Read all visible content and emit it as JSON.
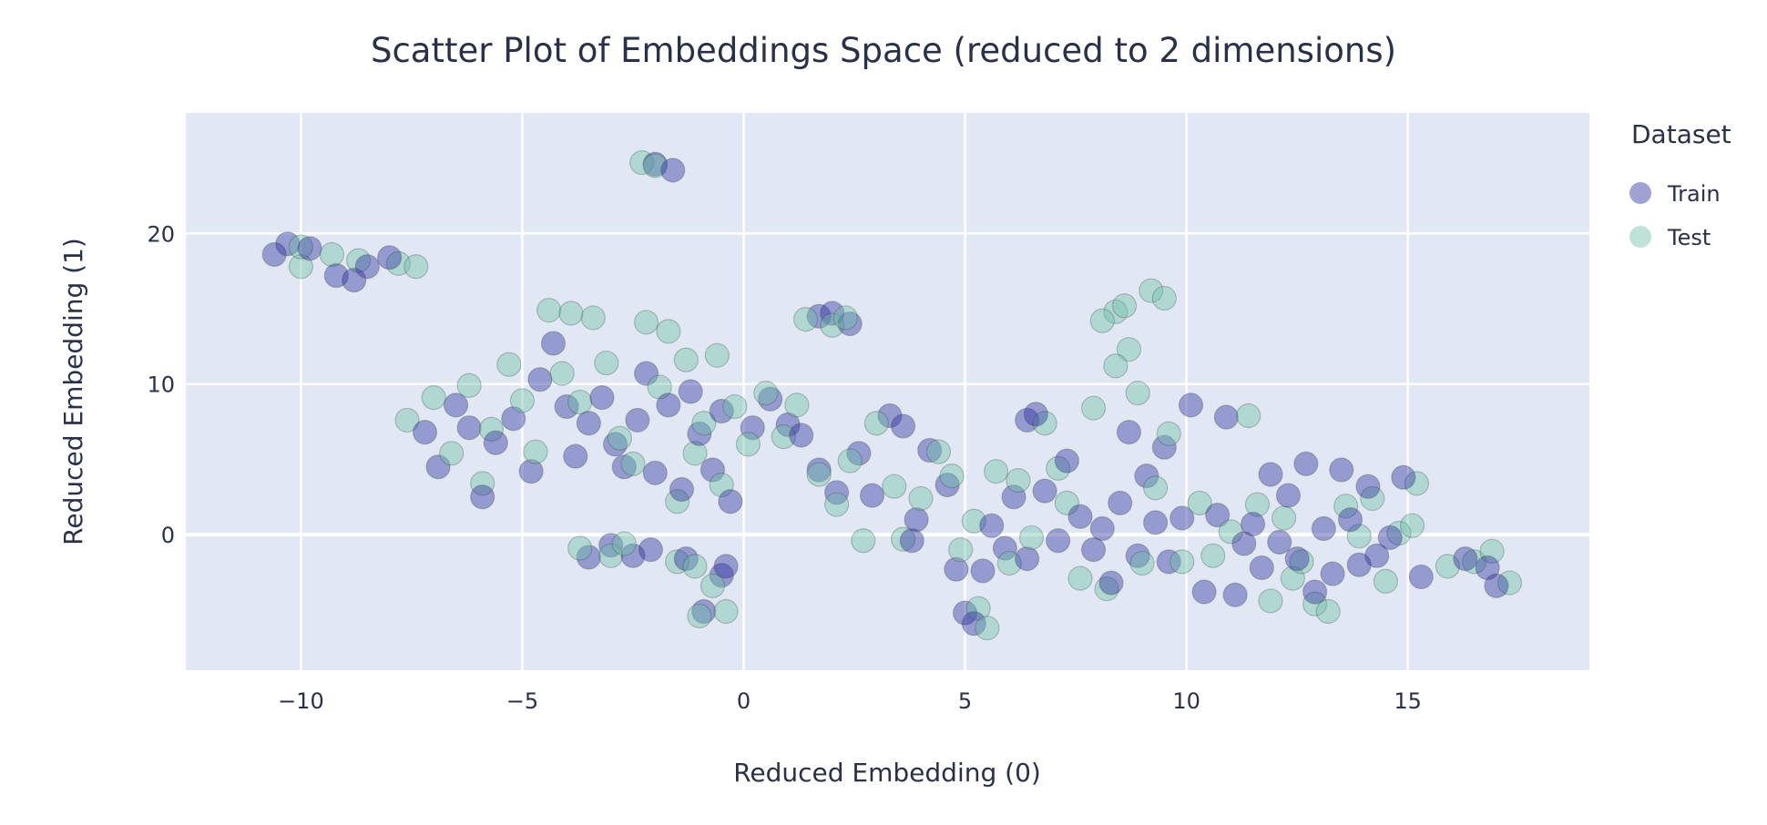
{
  "chart_data": {
    "type": "scatter",
    "title": "Scatter Plot of Embeddings Space (reduced to 2 dimensions)",
    "xlabel": "Reduced Embedding (0)",
    "ylabel": "Reduced Embedding (1)",
    "xlim": [
      -12.6,
      19.1
    ],
    "ylim": [
      -9,
      28
    ],
    "xticks": [
      -10,
      -5,
      0,
      5,
      10,
      15
    ],
    "yticks": [
      0,
      10,
      20
    ],
    "grid": true,
    "plot_background": "#e1e8f3",
    "legend": {
      "title": "Dataset",
      "placement": "top-right"
    },
    "series": [
      {
        "name": "Train",
        "color": "#2e2e9e",
        "points": [
          [
            -10.6,
            18.6
          ],
          [
            -10.3,
            19.3
          ],
          [
            -9.8,
            19.0
          ],
          [
            -9.2,
            17.2
          ],
          [
            -8.8,
            16.9
          ],
          [
            -8.5,
            17.8
          ],
          [
            -8.0,
            18.4
          ],
          [
            -2.0,
            24.6
          ],
          [
            -1.6,
            24.2
          ],
          [
            -7.2,
            6.8
          ],
          [
            -6.9,
            4.5
          ],
          [
            -6.5,
            8.6
          ],
          [
            -6.2,
            7.1
          ],
          [
            -5.9,
            2.5
          ],
          [
            -5.6,
            6.1
          ],
          [
            -5.2,
            7.7
          ],
          [
            -4.8,
            4.2
          ],
          [
            -4.6,
            10.3
          ],
          [
            -4.3,
            12.7
          ],
          [
            -4.0,
            8.5
          ],
          [
            -3.8,
            5.2
          ],
          [
            -3.5,
            7.4
          ],
          [
            -3.2,
            9.1
          ],
          [
            -2.9,
            6.0
          ],
          [
            -2.7,
            4.5
          ],
          [
            -2.4,
            7.6
          ],
          [
            -2.2,
            10.7
          ],
          [
            -2.0,
            4.1
          ],
          [
            -1.7,
            8.6
          ],
          [
            -1.4,
            3.0
          ],
          [
            -1.2,
            9.5
          ],
          [
            -1.0,
            6.7
          ],
          [
            -0.7,
            4.3
          ],
          [
            -0.5,
            8.2
          ],
          [
            -0.3,
            2.2
          ],
          [
            0.2,
            7.1
          ],
          [
            0.6,
            9.0
          ],
          [
            1.0,
            7.3
          ],
          [
            1.3,
            6.6
          ],
          [
            1.7,
            4.3
          ],
          [
            -3.5,
            -1.5
          ],
          [
            -3.0,
            -0.7
          ],
          [
            -2.5,
            -1.4
          ],
          [
            -2.1,
            -1.0
          ],
          [
            -1.3,
            -1.6
          ],
          [
            -0.9,
            -5.1
          ],
          [
            -0.5,
            -2.7
          ],
          [
            -0.4,
            -2.1
          ],
          [
            1.7,
            14.5
          ],
          [
            2.0,
            14.7
          ],
          [
            2.4,
            14.0
          ],
          [
            2.1,
            2.8
          ],
          [
            2.6,
            5.4
          ],
          [
            2.9,
            2.6
          ],
          [
            3.3,
            7.9
          ],
          [
            3.6,
            7.2
          ],
          [
            3.9,
            1.0
          ],
          [
            4.2,
            5.6
          ],
          [
            4.6,
            3.3
          ],
          [
            3.8,
            -0.4
          ],
          [
            4.8,
            -2.3
          ],
          [
            5.0,
            -5.2
          ],
          [
            5.2,
            -5.9
          ],
          [
            5.4,
            -2.4
          ],
          [
            5.6,
            0.6
          ],
          [
            5.9,
            -0.9
          ],
          [
            6.1,
            2.5
          ],
          [
            6.4,
            -1.6
          ],
          [
            6.4,
            7.6
          ],
          [
            6.6,
            8.0
          ],
          [
            6.8,
            2.9
          ],
          [
            7.1,
            -0.4
          ],
          [
            7.3,
            4.9
          ],
          [
            7.6,
            1.2
          ],
          [
            7.9,
            -1.0
          ],
          [
            8.1,
            0.4
          ],
          [
            8.3,
            -3.2
          ],
          [
            8.5,
            2.1
          ],
          [
            8.7,
            6.8
          ],
          [
            8.9,
            -1.4
          ],
          [
            9.1,
            3.9
          ],
          [
            9.3,
            0.8
          ],
          [
            9.5,
            5.8
          ],
          [
            9.6,
            -1.8
          ],
          [
            9.9,
            1.1
          ],
          [
            10.1,
            8.6
          ],
          [
            10.4,
            -3.8
          ],
          [
            10.7,
            1.3
          ],
          [
            10.9,
            7.8
          ],
          [
            11.1,
            -4.0
          ],
          [
            11.3,
            -0.6
          ],
          [
            11.5,
            0.7
          ],
          [
            11.7,
            -2.2
          ],
          [
            11.9,
            4.0
          ],
          [
            12.1,
            -0.5
          ],
          [
            12.3,
            2.6
          ],
          [
            12.5,
            -1.6
          ],
          [
            12.7,
            4.7
          ],
          [
            12.9,
            -3.8
          ],
          [
            13.1,
            0.4
          ],
          [
            13.3,
            -2.6
          ],
          [
            13.5,
            4.3
          ],
          [
            13.7,
            1.0
          ],
          [
            13.9,
            -2.0
          ],
          [
            14.1,
            3.2
          ],
          [
            14.3,
            -1.4
          ],
          [
            14.6,
            -0.2
          ],
          [
            14.9,
            3.8
          ],
          [
            15.3,
            -2.8
          ],
          [
            16.3,
            -1.6
          ],
          [
            16.8,
            -2.2
          ],
          [
            17.0,
            -3.4
          ]
        ]
      },
      {
        "name": "Test",
        "color": "#6fbfa6",
        "points": [
          [
            -10.0,
            17.8
          ],
          [
            -10.0,
            19.1
          ],
          [
            -9.3,
            18.6
          ],
          [
            -8.7,
            18.2
          ],
          [
            -7.8,
            18.0
          ],
          [
            -7.4,
            17.8
          ],
          [
            -2.3,
            24.7
          ],
          [
            -2.0,
            24.5
          ],
          [
            -7.6,
            7.6
          ],
          [
            -7.0,
            9.1
          ],
          [
            -6.6,
            5.4
          ],
          [
            -6.2,
            9.9
          ],
          [
            -5.9,
            3.4
          ],
          [
            -5.7,
            7.0
          ],
          [
            -5.3,
            11.3
          ],
          [
            -5.0,
            8.9
          ],
          [
            -4.7,
            5.5
          ],
          [
            -4.4,
            14.9
          ],
          [
            -4.1,
            10.7
          ],
          [
            -3.9,
            14.7
          ],
          [
            -3.7,
            8.8
          ],
          [
            -3.4,
            14.4
          ],
          [
            -3.1,
            11.4
          ],
          [
            -2.8,
            6.4
          ],
          [
            -2.5,
            4.7
          ],
          [
            -2.2,
            14.1
          ],
          [
            -1.9,
            9.8
          ],
          [
            -1.7,
            13.5
          ],
          [
            -1.5,
            2.2
          ],
          [
            -1.3,
            11.6
          ],
          [
            -1.1,
            5.4
          ],
          [
            -0.9,
            7.4
          ],
          [
            -0.6,
            11.9
          ],
          [
            -0.5,
            3.3
          ],
          [
            -0.2,
            8.5
          ],
          [
            0.1,
            6.0
          ],
          [
            0.5,
            9.4
          ],
          [
            0.9,
            6.5
          ],
          [
            1.2,
            8.6
          ],
          [
            1.7,
            4.0
          ],
          [
            -3.7,
            -0.9
          ],
          [
            -3.0,
            -1.4
          ],
          [
            -2.7,
            -0.6
          ],
          [
            -1.5,
            -1.8
          ],
          [
            -1.1,
            -2.1
          ],
          [
            -1.0,
            -5.4
          ],
          [
            -0.7,
            -3.4
          ],
          [
            -0.4,
            -5.1
          ],
          [
            1.4,
            14.3
          ],
          [
            2.0,
            13.9
          ],
          [
            2.3,
            14.4
          ],
          [
            2.1,
            2.0
          ],
          [
            2.4,
            4.9
          ],
          [
            2.7,
            -0.4
          ],
          [
            3.0,
            7.4
          ],
          [
            3.4,
            3.2
          ],
          [
            3.6,
            -0.3
          ],
          [
            4.0,
            2.4
          ],
          [
            4.4,
            5.5
          ],
          [
            4.7,
            3.9
          ],
          [
            4.9,
            -1.0
          ],
          [
            5.3,
            -4.9
          ],
          [
            5.5,
            -6.2
          ],
          [
            5.2,
            0.9
          ],
          [
            5.7,
            4.2
          ],
          [
            6.0,
            -1.9
          ],
          [
            6.2,
            3.6
          ],
          [
            6.5,
            -0.2
          ],
          [
            6.8,
            7.4
          ],
          [
            7.1,
            4.4
          ],
          [
            7.3,
            2.1
          ],
          [
            7.6,
            -2.9
          ],
          [
            7.9,
            8.4
          ],
          [
            8.2,
            -3.6
          ],
          [
            8.4,
            14.8
          ],
          [
            8.1,
            14.2
          ],
          [
            8.6,
            15.2
          ],
          [
            8.7,
            12.3
          ],
          [
            8.9,
            9.4
          ],
          [
            8.4,
            11.2
          ],
          [
            9.0,
            -1.9
          ],
          [
            9.2,
            16.2
          ],
          [
            9.5,
            15.7
          ],
          [
            9.3,
            3.1
          ],
          [
            9.6,
            6.7
          ],
          [
            9.9,
            -1.8
          ],
          [
            10.3,
            2.1
          ],
          [
            10.6,
            -1.4
          ],
          [
            11.0,
            0.2
          ],
          [
            11.4,
            7.9
          ],
          [
            11.6,
            2.0
          ],
          [
            11.9,
            -4.4
          ],
          [
            12.2,
            1.1
          ],
          [
            12.4,
            -2.9
          ],
          [
            12.6,
            -1.8
          ],
          [
            12.9,
            -4.6
          ],
          [
            13.2,
            -5.1
          ],
          [
            13.6,
            1.9
          ],
          [
            13.9,
            -0.1
          ],
          [
            14.2,
            2.4
          ],
          [
            14.5,
            -3.1
          ],
          [
            14.8,
            0.1
          ],
          [
            15.1,
            0.6
          ],
          [
            15.2,
            3.4
          ],
          [
            15.9,
            -2.1
          ],
          [
            16.5,
            -1.8
          ],
          [
            16.9,
            -1.1
          ],
          [
            17.3,
            -3.2
          ]
        ]
      }
    ]
  }
}
